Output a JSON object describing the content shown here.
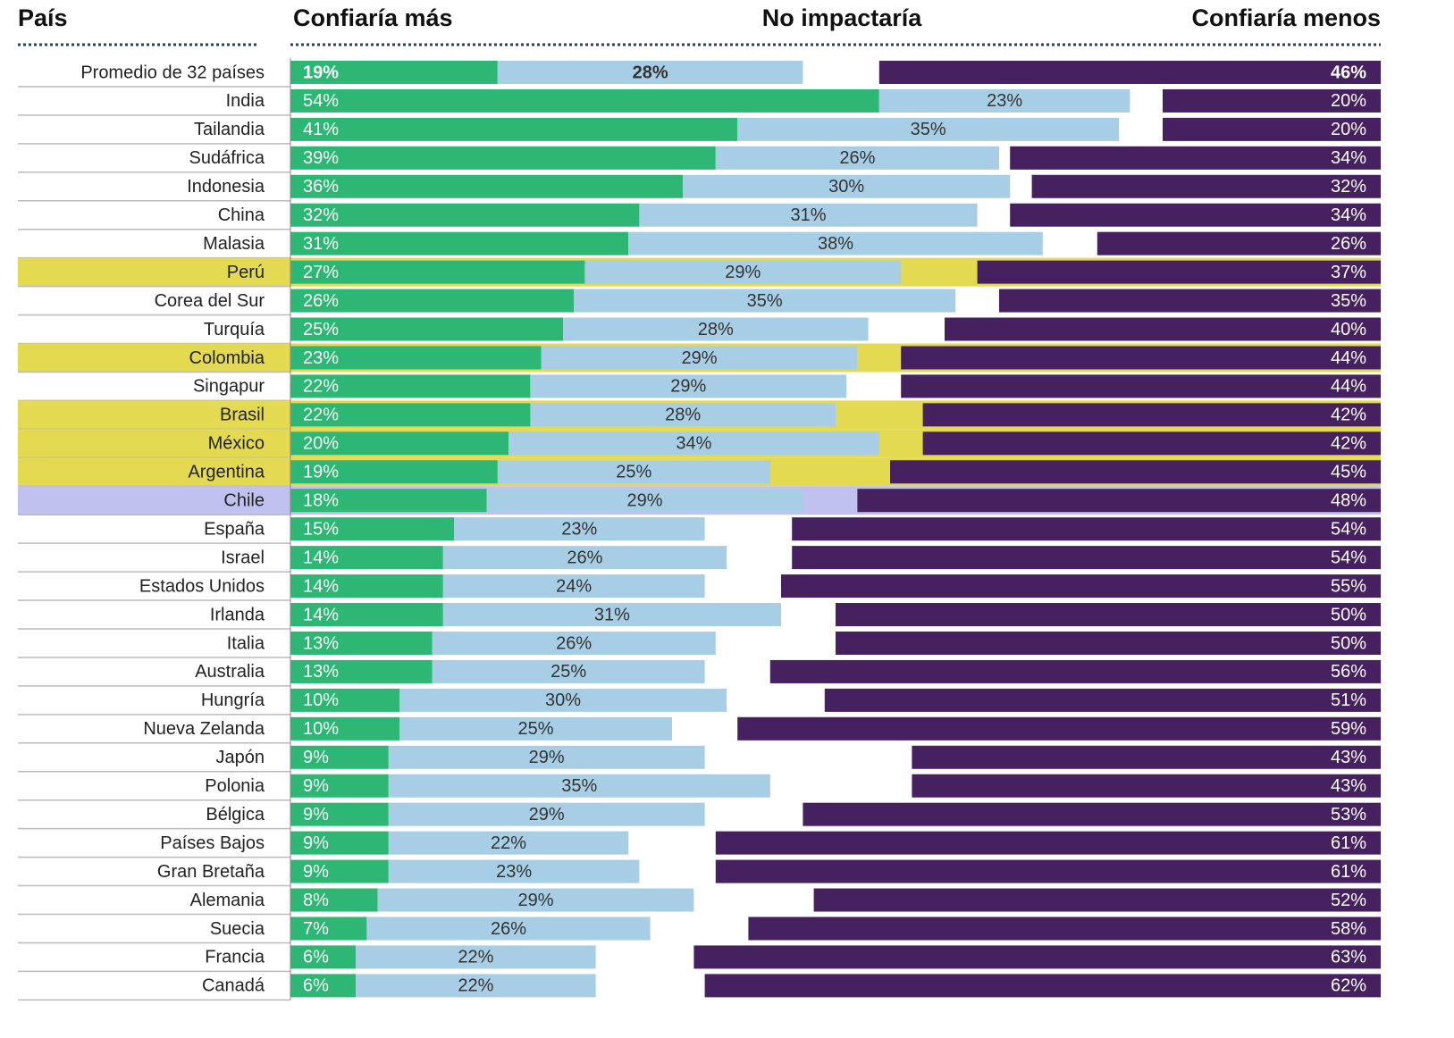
{
  "chart_data": {
    "type": "diverging_stacked_bar",
    "category_label": "País",
    "categories": [
      "Promedio de 32 países",
      "India",
      "Tailandia",
      "Sudáfrica",
      "Indonesia",
      "China",
      "Malasia",
      "Perú",
      "Corea del Sur",
      "Turquía",
      "Colombia",
      "Singapur",
      "Brasil",
      "México",
      "Argentina",
      "Chile",
      "España",
      "Israel",
      "Estados Unidos",
      "Irlanda",
      "Italia",
      "Australia",
      "Hungría",
      "Nueva Zelanda",
      "Japón",
      "Polonia",
      "Bélgica",
      "Países Bajos",
      "Gran Bretaña",
      "Alemania",
      "Suecia",
      "Francia",
      "Canadá"
    ],
    "row_highlights": [
      null,
      null,
      null,
      null,
      null,
      null,
      null,
      "#e3da52",
      null,
      null,
      "#e3da52",
      null,
      "#e3da52",
      "#e3da52",
      "#e3da52",
      "#c0c1ef",
      null,
      null,
      null,
      null,
      null,
      null,
      null,
      null,
      null,
      null,
      null,
      null,
      null,
      null,
      null,
      null,
      null
    ],
    "xlim": [
      0,
      100
    ],
    "series": [
      {
        "name": "Confiaría más",
        "color": "#2db674",
        "anchor": "left",
        "values": [
          19,
          54,
          41,
          39,
          36,
          32,
          31,
          27,
          26,
          25,
          23,
          22,
          22,
          20,
          19,
          18,
          15,
          14,
          14,
          14,
          13,
          13,
          10,
          10,
          9,
          9,
          9,
          9,
          9,
          8,
          7,
          6,
          6
        ],
        "value_labels": [
          "19%",
          "54%",
          "41%",
          "39%",
          "36%",
          "32%",
          "31%",
          "27%",
          "26%",
          "25%",
          "23%",
          "22%",
          "22%",
          "20%",
          "19%",
          "18%",
          "15%",
          "14%",
          "14%",
          "14%",
          "13%",
          "13%",
          "10%",
          "10%",
          "9%",
          "9%",
          "9%",
          "9%",
          "9%",
          "8%",
          "7%",
          "6%",
          "6%"
        ]
      },
      {
        "name": "No impactaría",
        "color": "#a7cee4",
        "anchor": "stack",
        "values": [
          28,
          23,
          35,
          26,
          30,
          31,
          38,
          29,
          35,
          28,
          29,
          29,
          28,
          34,
          25,
          29,
          23,
          26,
          24,
          31,
          26,
          25,
          30,
          25,
          29,
          35,
          29,
          22,
          23,
          29,
          26,
          22,
          22
        ],
        "value_labels": [
          "28%",
          "23%",
          "35%",
          "26%",
          "30%",
          "31%",
          "38%",
          "29%",
          "35%",
          "28%",
          "29%",
          "29%",
          "28%",
          "34%",
          "25%",
          "29%",
          "23%",
          "26%",
          "24%",
          "31%",
          "26%",
          "25%",
          "30%",
          "25%",
          "29%",
          "35%",
          "29%",
          "22%",
          "23%",
          "29%",
          "26%",
          "22%",
          "22%"
        ]
      },
      {
        "name": "Confiaría menos",
        "color": "#45215f",
        "anchor": "right",
        "values": [
          46,
          20,
          20,
          34,
          32,
          34,
          26,
          37,
          35,
          40,
          44,
          44,
          42,
          42,
          45,
          48,
          54,
          54,
          55,
          50,
          50,
          56,
          51,
          59,
          43,
          43,
          53,
          61,
          61,
          52,
          58,
          63,
          62
        ],
        "value_labels": [
          "46%",
          "20%",
          "20%",
          "34%",
          "32%",
          "34%",
          "26%",
          "37%",
          "35%",
          "40%",
          "44%",
          "44%",
          "42%",
          "42%",
          "45%",
          "48%",
          "54%",
          "54%",
          "55%",
          "50%",
          "50%",
          "56%",
          "51%",
          "59%",
          "43%",
          "43%",
          "53%",
          "61%",
          "61%",
          "52%",
          "58%",
          "63%",
          "62%"
        ]
      }
    ]
  }
}
